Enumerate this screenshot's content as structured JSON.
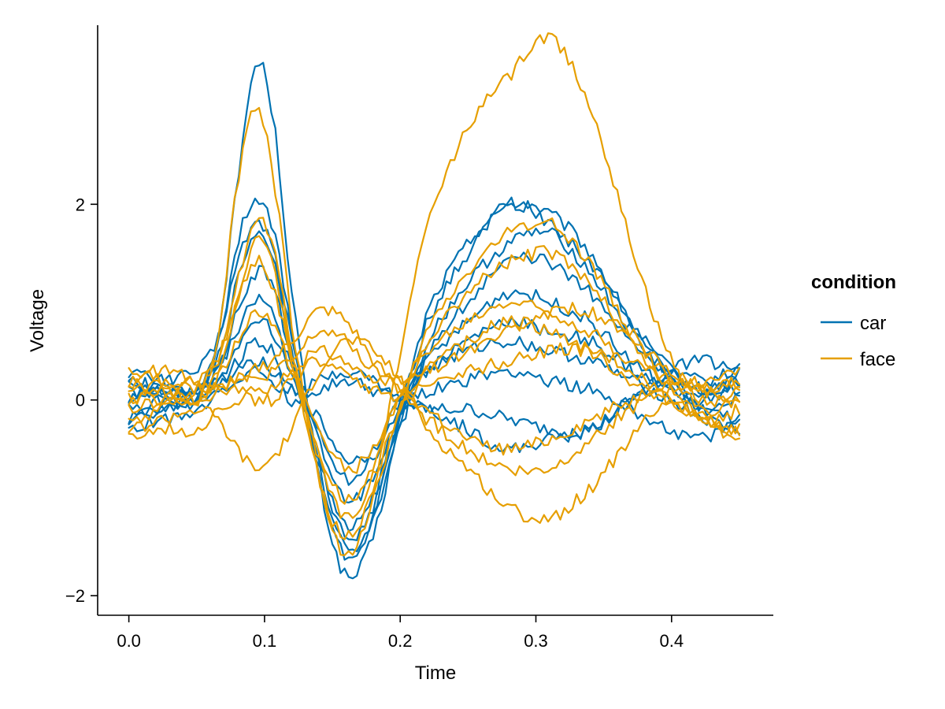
{
  "chart_data": {
    "type": "line",
    "xlabel": "Time",
    "ylabel": "Voltage",
    "xlim": [
      -0.023,
      0.475
    ],
    "ylim": [
      -2.2,
      3.83
    ],
    "xticks": [
      0.0,
      0.1,
      0.2,
      0.3,
      0.4
    ],
    "xtick_labels": [
      "0.0",
      "0.1",
      "0.2",
      "0.3",
      "0.4"
    ],
    "yticks": [
      -2,
      0,
      2
    ],
    "ytick_labels": [
      "−2",
      "0",
      "2"
    ],
    "grid": false,
    "legend": {
      "title": "condition",
      "position": "right",
      "entries": [
        {
          "label": "car",
          "color": "#0072B2"
        },
        {
          "label": "face",
          "color": "#E69F00"
        }
      ]
    },
    "time": [
      0.0,
      0.025,
      0.05,
      0.065,
      0.08,
      0.093,
      0.105,
      0.12,
      0.14,
      0.16,
      0.18,
      0.2,
      0.22,
      0.25,
      0.28,
      0.31,
      0.34,
      0.37,
      0.4,
      0.425,
      0.45
    ],
    "series": [
      {
        "name": "car",
        "color": "#0072B2",
        "values": [
          0.2,
          0.1,
          0.1,
          0.6,
          2.2,
          3.4,
          3.0,
          1.1,
          -0.8,
          -1.8,
          -1.4,
          -0.2,
          0.9,
          1.6,
          2.0,
          1.9,
          1.5,
          0.8,
          0.3,
          0.1,
          0.2
        ]
      },
      {
        "name": "car",
        "color": "#0072B2",
        "values": [
          0.0,
          0.2,
          0.1,
          0.5,
          1.6,
          2.0,
          1.8,
          0.7,
          -0.8,
          -1.6,
          -1.2,
          -0.1,
          0.8,
          1.5,
          2.0,
          1.8,
          1.4,
          0.8,
          0.3,
          0.0,
          0.3
        ]
      },
      {
        "name": "car",
        "color": "#0072B2",
        "values": [
          -0.2,
          0.0,
          0.0,
          0.4,
          1.2,
          1.7,
          1.5,
          0.5,
          -0.6,
          -1.4,
          -1.1,
          -0.2,
          0.6,
          1.2,
          1.6,
          1.7,
          1.3,
          0.7,
          0.2,
          -0.1,
          0.0
        ]
      },
      {
        "name": "car",
        "color": "#0072B2",
        "values": [
          0.3,
          0.2,
          0.3,
          0.6,
          1.4,
          1.8,
          1.6,
          0.6,
          -0.7,
          -1.5,
          -1.2,
          -0.3,
          0.5,
          1.0,
          1.4,
          1.4,
          1.1,
          0.6,
          0.3,
          0.2,
          0.3
        ]
      },
      {
        "name": "car",
        "color": "#0072B2",
        "values": [
          -0.1,
          -0.1,
          0.0,
          0.3,
          0.9,
          1.3,
          1.2,
          0.4,
          -0.6,
          -1.3,
          -1.0,
          -0.1,
          0.4,
          0.8,
          1.1,
          1.0,
          0.8,
          0.4,
          0.1,
          -0.1,
          -0.2
        ]
      },
      {
        "name": "car",
        "color": "#0072B2",
        "values": [
          0.1,
          0.0,
          0.1,
          0.3,
          0.7,
          1.0,
          0.9,
          0.3,
          -0.4,
          -1.0,
          -0.8,
          -0.1,
          0.3,
          0.6,
          0.8,
          0.7,
          0.6,
          0.3,
          0.1,
          0.0,
          0.1
        ]
      },
      {
        "name": "car",
        "color": "#0072B2",
        "values": [
          -0.3,
          -0.2,
          -0.1,
          0.1,
          0.4,
          0.6,
          0.5,
          0.1,
          -0.2,
          -0.6,
          -0.5,
          0.0,
          0.3,
          0.5,
          0.6,
          0.5,
          0.4,
          0.2,
          0.0,
          -0.2,
          -0.3
        ]
      },
      {
        "name": "car",
        "color": "#0072B2",
        "values": [
          0.2,
          0.1,
          0.0,
          0.2,
          0.3,
          0.4,
          0.3,
          0.1,
          0.1,
          0.2,
          0.1,
          0.0,
          -0.1,
          -0.1,
          -0.2,
          -0.3,
          -0.3,
          0.0,
          0.2,
          0.1,
          0.2
        ]
      },
      {
        "name": "car",
        "color": "#0072B2",
        "values": [
          0.0,
          0.1,
          0.1,
          0.2,
          0.5,
          0.8,
          0.7,
          0.2,
          -0.3,
          -0.8,
          -0.6,
          -0.1,
          0.1,
          0.2,
          0.3,
          0.2,
          0.1,
          -0.1,
          -0.3,
          -0.4,
          -0.2
        ]
      },
      {
        "name": "car",
        "color": "#0072B2",
        "values": [
          -0.2,
          -0.1,
          0.0,
          0.1,
          0.2,
          0.3,
          0.2,
          0.0,
          0.2,
          0.3,
          0.2,
          0.0,
          -0.1,
          -0.3,
          -0.5,
          -0.4,
          -0.3,
          0.0,
          0.3,
          0.4,
          0.3
        ]
      },
      {
        "name": "face",
        "color": "#E69F00",
        "values": [
          0.2,
          0.0,
          0.1,
          0.6,
          2.2,
          3.0,
          2.4,
          0.8,
          -0.8,
          -1.4,
          -0.9,
          0.5,
          1.8,
          2.8,
          3.3,
          3.7,
          3.0,
          1.6,
          0.4,
          0.0,
          0.1
        ]
      },
      {
        "name": "face",
        "color": "#E69F00",
        "values": [
          0.0,
          0.2,
          0.1,
          0.4,
          1.2,
          1.8,
          1.6,
          0.5,
          -0.8,
          -1.6,
          -1.0,
          -0.1,
          0.7,
          1.3,
          1.7,
          1.8,
          1.4,
          0.7,
          0.2,
          -0.1,
          0.0
        ]
      },
      {
        "name": "face",
        "color": "#E69F00",
        "values": [
          -0.1,
          0.0,
          0.0,
          0.3,
          1.0,
          1.6,
          1.4,
          0.4,
          -0.6,
          -1.2,
          -0.8,
          -0.1,
          0.6,
          1.1,
          1.4,
          1.5,
          1.2,
          0.6,
          0.1,
          -0.2,
          -0.1
        ]
      },
      {
        "name": "face",
        "color": "#E69F00",
        "values": [
          0.3,
          0.2,
          0.2,
          0.4,
          1.0,
          1.4,
          1.2,
          0.4,
          -0.5,
          -1.0,
          -0.7,
          0.1,
          0.5,
          0.8,
          1.0,
          0.9,
          0.7,
          0.4,
          0.2,
          0.1,
          0.2
        ]
      },
      {
        "name": "face",
        "color": "#E69F00",
        "values": [
          -0.2,
          -0.1,
          0.0,
          0.2,
          0.6,
          0.9,
          0.8,
          0.3,
          -0.3,
          -0.7,
          -0.5,
          0.0,
          0.3,
          0.6,
          0.8,
          0.7,
          0.5,
          0.2,
          0.0,
          -0.2,
          -0.3
        ]
      },
      {
        "name": "face",
        "color": "#E69F00",
        "values": [
          0.1,
          0.1,
          0.0,
          0.1,
          0.2,
          0.3,
          0.4,
          0.6,
          0.9,
          0.8,
          0.4,
          0.1,
          -0.2,
          -0.5,
          -0.7,
          -0.7,
          -0.4,
          -0.1,
          0.1,
          0.2,
          0.3
        ]
      },
      {
        "name": "face",
        "color": "#E69F00",
        "values": [
          -0.3,
          -0.2,
          -0.1,
          -0.2,
          -0.5,
          -0.7,
          -0.6,
          -0.3,
          0.3,
          0.6,
          0.5,
          0.2,
          -0.3,
          -0.7,
          -1.1,
          -1.2,
          -0.9,
          -0.4,
          0.0,
          -0.2,
          -0.4
        ]
      },
      {
        "name": "face",
        "color": "#E69F00",
        "values": [
          0.0,
          0.1,
          0.0,
          0.1,
          0.2,
          0.2,
          0.3,
          0.4,
          0.7,
          0.6,
          0.3,
          0.1,
          -0.1,
          -0.4,
          -0.5,
          -0.4,
          -0.2,
          0.0,
          0.2,
          0.1,
          0.0
        ]
      },
      {
        "name": "face",
        "color": "#E69F00",
        "values": [
          0.2,
          0.3,
          0.2,
          0.1,
          0.1,
          0.0,
          0.1,
          0.3,
          0.5,
          0.4,
          0.2,
          0.2,
          0.3,
          0.5,
          0.7,
          0.9,
          0.9,
          0.6,
          0.3,
          0.1,
          0.2
        ]
      },
      {
        "name": "face",
        "color": "#E69F00",
        "values": [
          -0.4,
          -0.3,
          -0.3,
          -0.1,
          0.0,
          0.1,
          0.0,
          0.2,
          0.4,
          0.3,
          0.1,
          0.0,
          0.2,
          0.3,
          0.4,
          0.5,
          0.5,
          0.3,
          0.0,
          -0.2,
          -0.3
        ]
      }
    ]
  }
}
